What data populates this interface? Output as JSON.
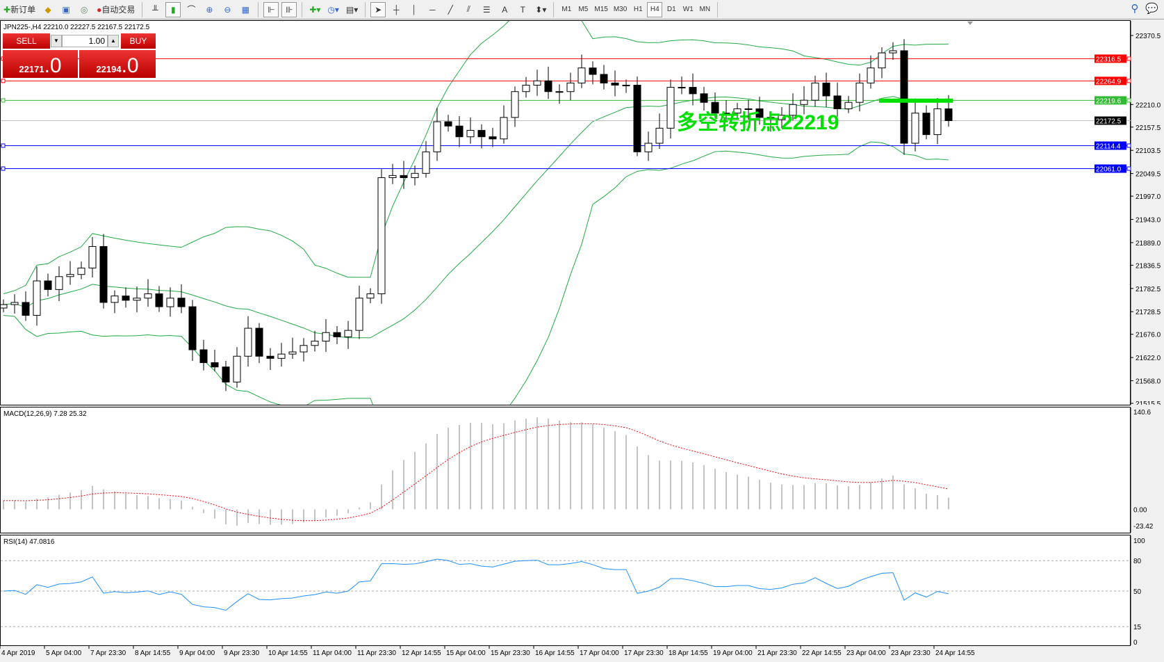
{
  "toolbar": {
    "new_order": "新订单",
    "auto_trading": "自动交易",
    "timeframes": [
      "M1",
      "M5",
      "M15",
      "M30",
      "H1",
      "H4",
      "D1",
      "W1",
      "MN"
    ],
    "active_timeframe": "H4"
  },
  "chart": {
    "header": "JPN225-,H4  22210.0 22227.5 22167.5 22172.5",
    "annotation": "多空转折点22219",
    "annotation_color": "#00e000",
    "price_ticks": [
      "22370.5",
      "22210.0",
      "22157.5",
      "22103.5",
      "22049.5",
      "21997.0",
      "21943.0",
      "21889.0",
      "21836.5",
      "21782.5",
      "21728.5",
      "21676.0",
      "21622.0",
      "21568.0",
      "21515.5"
    ],
    "ylim": [
      21515.5,
      22370.5
    ],
    "levels": [
      {
        "value": "22316.5",
        "color": "#ff0000"
      },
      {
        "value": "22264.9",
        "color": "#ff0000"
      },
      {
        "value": "22219.6",
        "color": "#33bb33"
      },
      {
        "value": "22172.5",
        "color": "#000000"
      },
      {
        "value": "22114.4",
        "color": "#0000ff"
      },
      {
        "value": "22061.0",
        "color": "#0000ff"
      }
    ],
    "turning_point": 22219,
    "closes": [
      21745,
      21750,
      21720,
      21800,
      21780,
      21810,
      21815,
      21830,
      21880,
      21750,
      21765,
      21755,
      21760,
      21770,
      21740,
      21760,
      21740,
      21640,
      21610,
      21600,
      21565,
      21625,
      21690,
      21625,
      21620,
      21630,
      21635,
      21650,
      21660,
      21680,
      21670,
      21685,
      21760,
      21770,
      22040,
      22045,
      22040,
      22050,
      22100,
      22170,
      22160,
      22135,
      22150,
      22135,
      22130,
      22180,
      22240,
      22255,
      22265,
      22240,
      22240,
      22260,
      22295,
      22280,
      22260,
      22255,
      22255,
      22100,
      22120,
      22155,
      22250,
      22250,
      22235,
      22215,
      22190,
      22190,
      22200,
      22200,
      22180,
      22175,
      22185,
      22210,
      22220,
      22260,
      22230,
      22200,
      22215,
      22260,
      22295,
      22330,
      22335,
      22120,
      22190,
      22140,
      22200,
      22172.5
    ]
  },
  "trade": {
    "sell_label": "SELL",
    "buy_label": "BUY",
    "lot": "1.00",
    "sell_price": "22171",
    "sell_frac": ".0",
    "buy_price": "22194",
    "buy_frac": ".0"
  },
  "macd": {
    "header": "MACD(12,26,9) 7.28 25.32",
    "ticks": [
      "140.6",
      "0.00",
      "-23.42"
    ],
    "range": [
      -23.42,
      140.6
    ],
    "signal_color": "#ff0000"
  },
  "rsi": {
    "header": "RSI(14) 47.0816",
    "ticks": [
      "100",
      "80",
      "50",
      "15",
      "0"
    ],
    "line_color": "#1e90ff"
  },
  "dates": [
    "4 Apr 2019",
    "5 Apr 04:00",
    "7 Apr 23:30",
    "8 Apr 14:55",
    "9 Apr 04:00",
    "9 Apr 23:30",
    "10 Apr 14:55",
    "11 Apr 04:00",
    "11 Apr 23:30",
    "12 Apr 14:55",
    "15 Apr 04:00",
    "15 Apr 23:30",
    "16 Apr 14:55",
    "17 Apr 04:00",
    "17 Apr 23:30",
    "18 Apr 14:55",
    "19 Apr 04:00",
    "21 Apr 23:30",
    "22 Apr 14:55",
    "23 Apr 04:00",
    "23 Apr 23:30",
    "24 Apr 14:55"
  ]
}
